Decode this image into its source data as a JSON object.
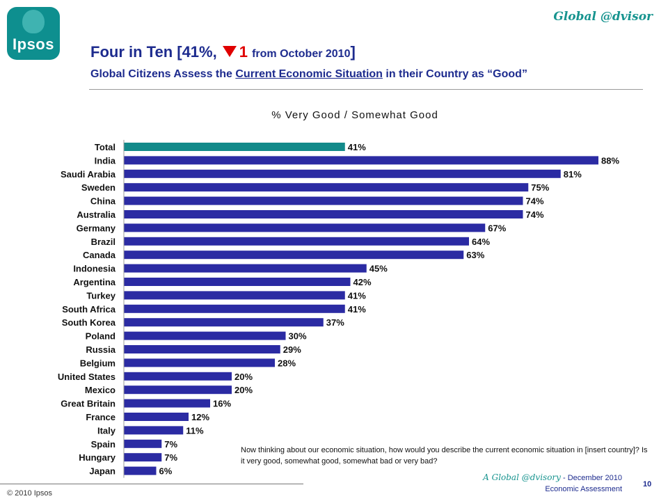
{
  "logo": {
    "text": "Ipsos"
  },
  "brand": "Global @dvisor",
  "title": {
    "part1": "Four in Ten [41%,",
    "change_value": "1",
    "part2": "from October 2010",
    "bracket_close": "]",
    "line2_prefix": "Global Citizens Assess the ",
    "line2_underlined": "Current Economic Situation",
    "line2_suffix": " in their Country as “Good”"
  },
  "question": "Now thinking about our economic situation, how would you describe the current economic situation in [insert country]?  Is it very good, somewhat good, somewhat bad or very bad?",
  "footer": {
    "copyright": "© 2010 Ipsos",
    "series_brand": "A Global @dvisory",
    "date": " - December 2010",
    "report": "Economic Assessment",
    "page": "10"
  },
  "colors": {
    "total_bar": "#128a8a",
    "country_bar": "#2b2ba3",
    "title": "#1d2b8e",
    "accent": "#e00000",
    "brand": "#17948f"
  },
  "chart_data": {
    "type": "bar",
    "orientation": "horizontal",
    "title": "% Very Good / Somewhat Good",
    "categories": [
      "Total",
      "India",
      "Saudi Arabia",
      "Sweden",
      "China",
      "Australia",
      "Germany",
      "Brazil",
      "Canada",
      "Indonesia",
      "Argentina",
      "Turkey",
      "South Africa",
      "South Korea",
      "Poland",
      "Russia",
      "Belgium",
      "United States",
      "Mexico",
      "Great Britain",
      "France",
      "Italy",
      "Spain",
      "Hungary",
      "Japan"
    ],
    "values": [
      41,
      88,
      81,
      75,
      74,
      74,
      67,
      64,
      63,
      45,
      42,
      41,
      41,
      37,
      30,
      29,
      28,
      20,
      20,
      16,
      12,
      11,
      7,
      7,
      6
    ],
    "value_suffix": "%",
    "highlight": "Total",
    "xlim": [
      0,
      100
    ],
    "grid": false,
    "legend": "none"
  }
}
